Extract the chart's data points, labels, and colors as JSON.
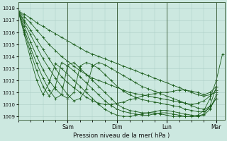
{
  "bg_color": "#cce8e0",
  "grid_color": "#aaccC4",
  "line_color": "#1a5c1a",
  "ylabel_ticks": [
    1009,
    1010,
    1011,
    1012,
    1013,
    1014,
    1015,
    1016,
    1017,
    1018
  ],
  "ylim": [
    1008.7,
    1018.5
  ],
  "xlabel": "Pression niveau de la mer( hPa )",
  "day_labels": [
    "Sam",
    "Dim",
    "Lun",
    "Mar"
  ],
  "day_positions": [
    24,
    48,
    72,
    96
  ],
  "xlim": [
    0,
    100
  ],
  "series": [
    {
      "x": [
        0,
        3,
        6,
        9,
        12,
        15,
        18,
        21,
        24,
        27,
        30,
        33,
        36,
        39,
        42,
        45,
        48,
        51,
        54,
        57,
        60,
        63,
        66,
        69,
        72,
        75,
        78,
        81,
        84,
        87,
        90,
        93,
        96
      ],
      "y": [
        1017.8,
        1017.5,
        1017.2,
        1016.8,
        1016.5,
        1016.2,
        1015.9,
        1015.6,
        1015.3,
        1015.0,
        1014.7,
        1014.4,
        1014.2,
        1014.0,
        1013.8,
        1013.6,
        1013.4,
        1013.2,
        1013.0,
        1012.8,
        1012.6,
        1012.4,
        1012.2,
        1012.0,
        1011.8,
        1011.6,
        1011.4,
        1011.2,
        1011.0,
        1010.8,
        1010.7,
        1010.8,
        1011.0
      ]
    },
    {
      "x": [
        0,
        3,
        6,
        9,
        12,
        15,
        18,
        21,
        24,
        27,
        30,
        33,
        36,
        39,
        42,
        45,
        48,
        51,
        54,
        57,
        60,
        63,
        66,
        69,
        72,
        75,
        78,
        81,
        84,
        87,
        90,
        93,
        96
      ],
      "y": [
        1017.8,
        1017.3,
        1016.8,
        1016.2,
        1015.6,
        1015.0,
        1014.5,
        1014.0,
        1013.6,
        1013.2,
        1012.8,
        1012.5,
        1012.2,
        1012.0,
        1011.8,
        1011.6,
        1011.4,
        1011.2,
        1011.0,
        1010.9,
        1010.8,
        1010.7,
        1010.6,
        1010.5,
        1010.4,
        1010.3,
        1010.2,
        1010.1,
        1010.0,
        1010.1,
        1010.3,
        1010.7,
        1011.2
      ]
    },
    {
      "x": [
        0,
        3,
        6,
        9,
        12,
        15,
        18,
        21,
        24,
        27,
        30,
        33,
        36,
        39,
        42,
        45,
        48,
        51,
        54,
        57,
        60,
        63,
        66,
        69,
        72,
        75,
        78,
        81,
        84,
        87,
        90,
        93,
        96
      ],
      "y": [
        1017.8,
        1017.0,
        1016.2,
        1015.4,
        1014.6,
        1013.8,
        1013.0,
        1012.3,
        1011.8,
        1011.4,
        1011.0,
        1010.6,
        1010.3,
        1010.1,
        1010.0,
        1010.0,
        1010.1,
        1010.2,
        1010.4,
        1010.5,
        1010.7,
        1010.8,
        1010.9,
        1011.0,
        1011.0,
        1011.1,
        1011.2,
        1011.2,
        1011.1,
        1011.0,
        1010.8,
        1011.0,
        1011.5
      ]
    },
    {
      "x": [
        0,
        3,
        6,
        9,
        12,
        15,
        18,
        21,
        24,
        27,
        30,
        33,
        36,
        39,
        42,
        45,
        48,
        51,
        54,
        57,
        60,
        63,
        66,
        69,
        72,
        75,
        78,
        81,
        84,
        87,
        90,
        93,
        96
      ],
      "y": [
        1017.8,
        1016.8,
        1015.8,
        1014.8,
        1013.8,
        1013.0,
        1012.2,
        1011.5,
        1010.8,
        1010.3,
        1010.5,
        1011.3,
        1013.2,
        1013.5,
        1013.3,
        1013.0,
        1012.7,
        1012.4,
        1012.1,
        1011.8,
        1011.5,
        1011.3,
        1011.1,
        1010.9,
        1010.7,
        1010.5,
        1010.3,
        1010.1,
        1009.9,
        1009.7,
        1009.6,
        1009.8,
        1010.5
      ]
    },
    {
      "x": [
        0,
        3,
        6,
        9,
        12,
        15,
        18,
        21,
        24,
        27,
        30,
        33,
        36,
        39,
        42,
        45,
        48,
        51,
        54,
        57,
        60,
        63,
        66,
        69,
        72,
        75,
        78,
        81,
        84,
        87,
        90,
        93,
        96
      ],
      "y": [
        1017.8,
        1016.5,
        1015.2,
        1014.0,
        1012.9,
        1012.0,
        1011.3,
        1010.8,
        1010.5,
        1011.0,
        1013.2,
        1013.5,
        1013.3,
        1013.0,
        1012.5,
        1012.0,
        1011.5,
        1011.1,
        1010.8,
        1010.6,
        1010.4,
        1010.3,
        1010.2,
        1010.1,
        1010.0,
        1009.9,
        1009.8,
        1009.6,
        1009.5,
        1009.4,
        1009.4,
        1009.7,
        1010.5
      ]
    },
    {
      "x": [
        0,
        3,
        6,
        9,
        12,
        15,
        18,
        21,
        24,
        27,
        30,
        33,
        36,
        39,
        42,
        45,
        48,
        51,
        54,
        57,
        60,
        63,
        66,
        69,
        72,
        75,
        78,
        81,
        84,
        87,
        90,
        93,
        96
      ],
      "y": [
        1017.8,
        1016.2,
        1014.7,
        1013.4,
        1012.2,
        1011.2,
        1010.5,
        1010.8,
        1013.3,
        1013.5,
        1013.0,
        1012.5,
        1012.0,
        1011.5,
        1011.0,
        1010.5,
        1010.0,
        1009.7,
        1009.5,
        1009.4,
        1009.3,
        1009.3,
        1009.4,
        1009.5,
        1009.5,
        1009.4,
        1009.3,
        1009.2,
        1009.1,
        1009.0,
        1009.1,
        1009.6,
        1010.8
      ]
    },
    {
      "x": [
        0,
        3,
        6,
        9,
        12,
        15,
        18,
        21,
        24,
        27,
        30,
        33,
        36,
        39,
        42,
        45,
        48,
        51,
        54,
        57,
        60,
        63,
        66,
        69,
        72,
        75,
        78,
        81,
        84,
        87,
        90,
        93,
        96
      ],
      "y": [
        1017.8,
        1016.0,
        1014.3,
        1012.8,
        1011.5,
        1010.7,
        1011.5,
        1013.5,
        1013.2,
        1012.8,
        1012.3,
        1011.8,
        1011.3,
        1010.8,
        1010.3,
        1009.9,
        1009.6,
        1009.4,
        1009.3,
        1009.2,
        1009.1,
        1009.1,
        1009.2,
        1009.3,
        1009.3,
        1009.2,
        1009.1,
        1009.0,
        1009.0,
        1009.0,
        1009.2,
        1009.9,
        1011.5
      ]
    },
    {
      "x": [
        0,
        3,
        6,
        9,
        12,
        15,
        18,
        21,
        24,
        27,
        30,
        33,
        36,
        39,
        42,
        45,
        48,
        51,
        54,
        57,
        60,
        63,
        66,
        69,
        72,
        75,
        78,
        81,
        84,
        87,
        90,
        93,
        96,
        99
      ],
      "y": [
        1017.8,
        1015.8,
        1013.8,
        1012.0,
        1010.8,
        1011.8,
        1013.4,
        1013.0,
        1012.5,
        1012.0,
        1011.5,
        1011.0,
        1010.5,
        1010.0,
        1009.6,
        1009.3,
        1009.1,
        1009.0,
        1009.0,
        1009.1,
        1009.2,
        1009.3,
        1009.3,
        1009.2,
        1009.1,
        1009.0,
        1009.0,
        1009.0,
        1009.0,
        1009.1,
        1009.5,
        1010.5,
        1012.0,
        1014.2
      ]
    }
  ]
}
